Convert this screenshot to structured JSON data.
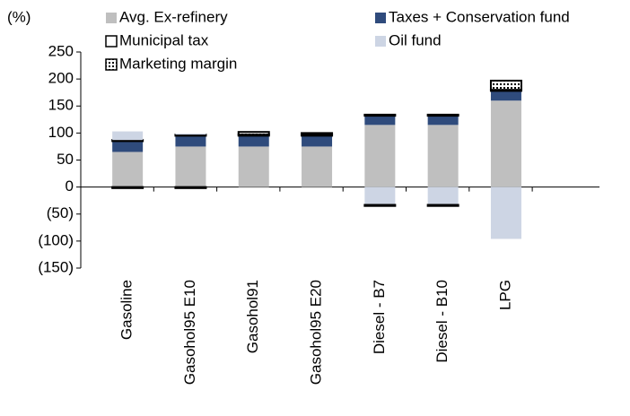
{
  "chart_data": {
    "type": "stacked_bar",
    "y_label": "(%)",
    "categories": [
      "Gasoline",
      "Gasohol95 E10",
      "Gasohol91",
      "Gasohol95 E20",
      "Diesel - B7",
      "Diesel - B10",
      "LPG"
    ],
    "series": [
      {
        "name": "Avg. Ex-refinery",
        "color": "#bfbfbf",
        "values": [
          65,
          75,
          75,
          75,
          115,
          115,
          160
        ]
      },
      {
        "name": "Taxes + Conservation fund",
        "color": "#2f4b7c",
        "values": [
          20,
          20,
          20,
          20,
          17,
          17,
          18
        ]
      },
      {
        "name": "Municipal tax",
        "color": "#ffffff",
        "edgecolor": "#000000",
        "values": [
          2,
          2,
          2,
          2,
          2,
          2,
          2
        ]
      },
      {
        "name": "Oil fund",
        "color": "#cdd5e4",
        "values": [
          16,
          2,
          0,
          0,
          -33,
          -33,
          -96
        ]
      },
      {
        "name": "Marketing margin",
        "color": "#ffffff",
        "edgecolor": "#000000",
        "pattern": "dots",
        "values": [
          -2,
          -2,
          5,
          3,
          -2,
          -2,
          17
        ]
      }
    ],
    "ylim": [
      -150,
      250
    ],
    "yticks": [
      {
        "value": -150,
        "label": "(150)"
      },
      {
        "value": -100,
        "label": "(100)"
      },
      {
        "value": -50,
        "label": "(50)"
      },
      0,
      50,
      100,
      150,
      200,
      250
    ],
    "legend": "top"
  }
}
